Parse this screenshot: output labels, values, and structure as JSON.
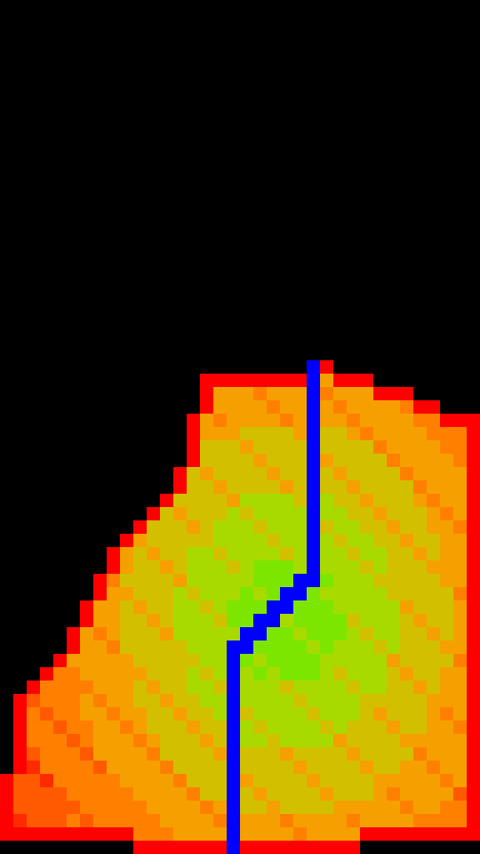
{
  "palette": {
    "background": "#000000",
    "boundary": "#ff0000",
    "levels": [
      "#ff2a00",
      "#ff5a00",
      "#ff8000",
      "#f5a000",
      "#d2c000",
      "#a8da00",
      "#7ce600"
    ],
    "path": "#0000ff"
  },
  "grid": {
    "cols": 36,
    "rows": 64,
    "region": {
      "top_row": 27,
      "bottom_row": 63,
      "left_profile": [
        {
          "row": 28,
          "col": 15
        },
        {
          "row": 32,
          "col": 14
        },
        {
          "row": 36,
          "col": 13
        },
        {
          "row": 38,
          "col": 11
        },
        {
          "row": 40,
          "col": 9
        },
        {
          "row": 43,
          "col": 7
        },
        {
          "row": 46,
          "col": 6
        },
        {
          "row": 49,
          "col": 4
        },
        {
          "row": 52,
          "col": 1
        },
        {
          "row": 62,
          "col": 0
        }
      ],
      "right_profile": [
        {
          "row": 27,
          "col": 25
        },
        {
          "row": 28,
          "col": 27
        },
        {
          "row": 29,
          "col": 30
        },
        {
          "row": 30,
          "col": 32
        },
        {
          "row": 31,
          "col": 35
        },
        {
          "row": 62,
          "col": 35
        }
      ]
    },
    "hotspot": {
      "row": 46,
      "col": 21
    },
    "path_cells": [
      {
        "row": 27,
        "col": 23
      },
      {
        "row": 43,
        "col": 23
      },
      {
        "row": 44,
        "col": 22
      },
      {
        "row": 45,
        "col": 21
      },
      {
        "row": 46,
        "col": 20
      },
      {
        "row": 47,
        "col": 19
      },
      {
        "row": 48,
        "col": 18
      },
      {
        "row": 49,
        "col": 17
      },
      {
        "row": 63,
        "col": 17
      }
    ]
  }
}
